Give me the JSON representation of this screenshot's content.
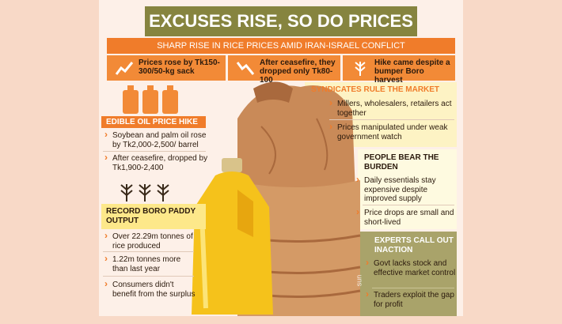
{
  "header": {
    "title": "EXCUSES RISE, SO DO PRICES",
    "subtitle": "SHARP RISE IN RICE PRICES AMID IRAN-ISRAEL CONFLICT"
  },
  "highlights": [
    "Prices rose by Tk150-300/50-kg sack",
    "After ceasefire, they dropped only Tk80-100",
    "Hike came despite a bumper Boro harvest"
  ],
  "oil": {
    "title": "EDIBLE OIL PRICE HIKE",
    "items": [
      "Soybean and palm oil rose by Tk2,000-2,500/ barrel",
      "After ceasefire, dropped by Tk1,900-2,400"
    ]
  },
  "boro": {
    "title": "RECORD BORO PADDY OUTPUT",
    "items": [
      "Over 22.29m tonnes of rice produced",
      "1.22m tonnes more than last year",
      "Consumers didn't benefit from the surplus"
    ]
  },
  "syndicates": {
    "title": "SYNDICATES RULE THE MARKET",
    "items": [
      "Millers, wholesalers, retailers act together",
      "Prices manipulated under weak government watch"
    ]
  },
  "people": {
    "title": "PEOPLE BEAR THE BURDEN",
    "items": [
      "Daily essentials stay expensive despite improved supply",
      "Price drops are small and short-lived"
    ]
  },
  "experts": {
    "title": "EXPERTS CALL OUT INACTION",
    "items": [
      "Govt lacks stock and effective market control",
      "Traders exploit the gap for profit"
    ]
  },
  "credit": "sun"
}
